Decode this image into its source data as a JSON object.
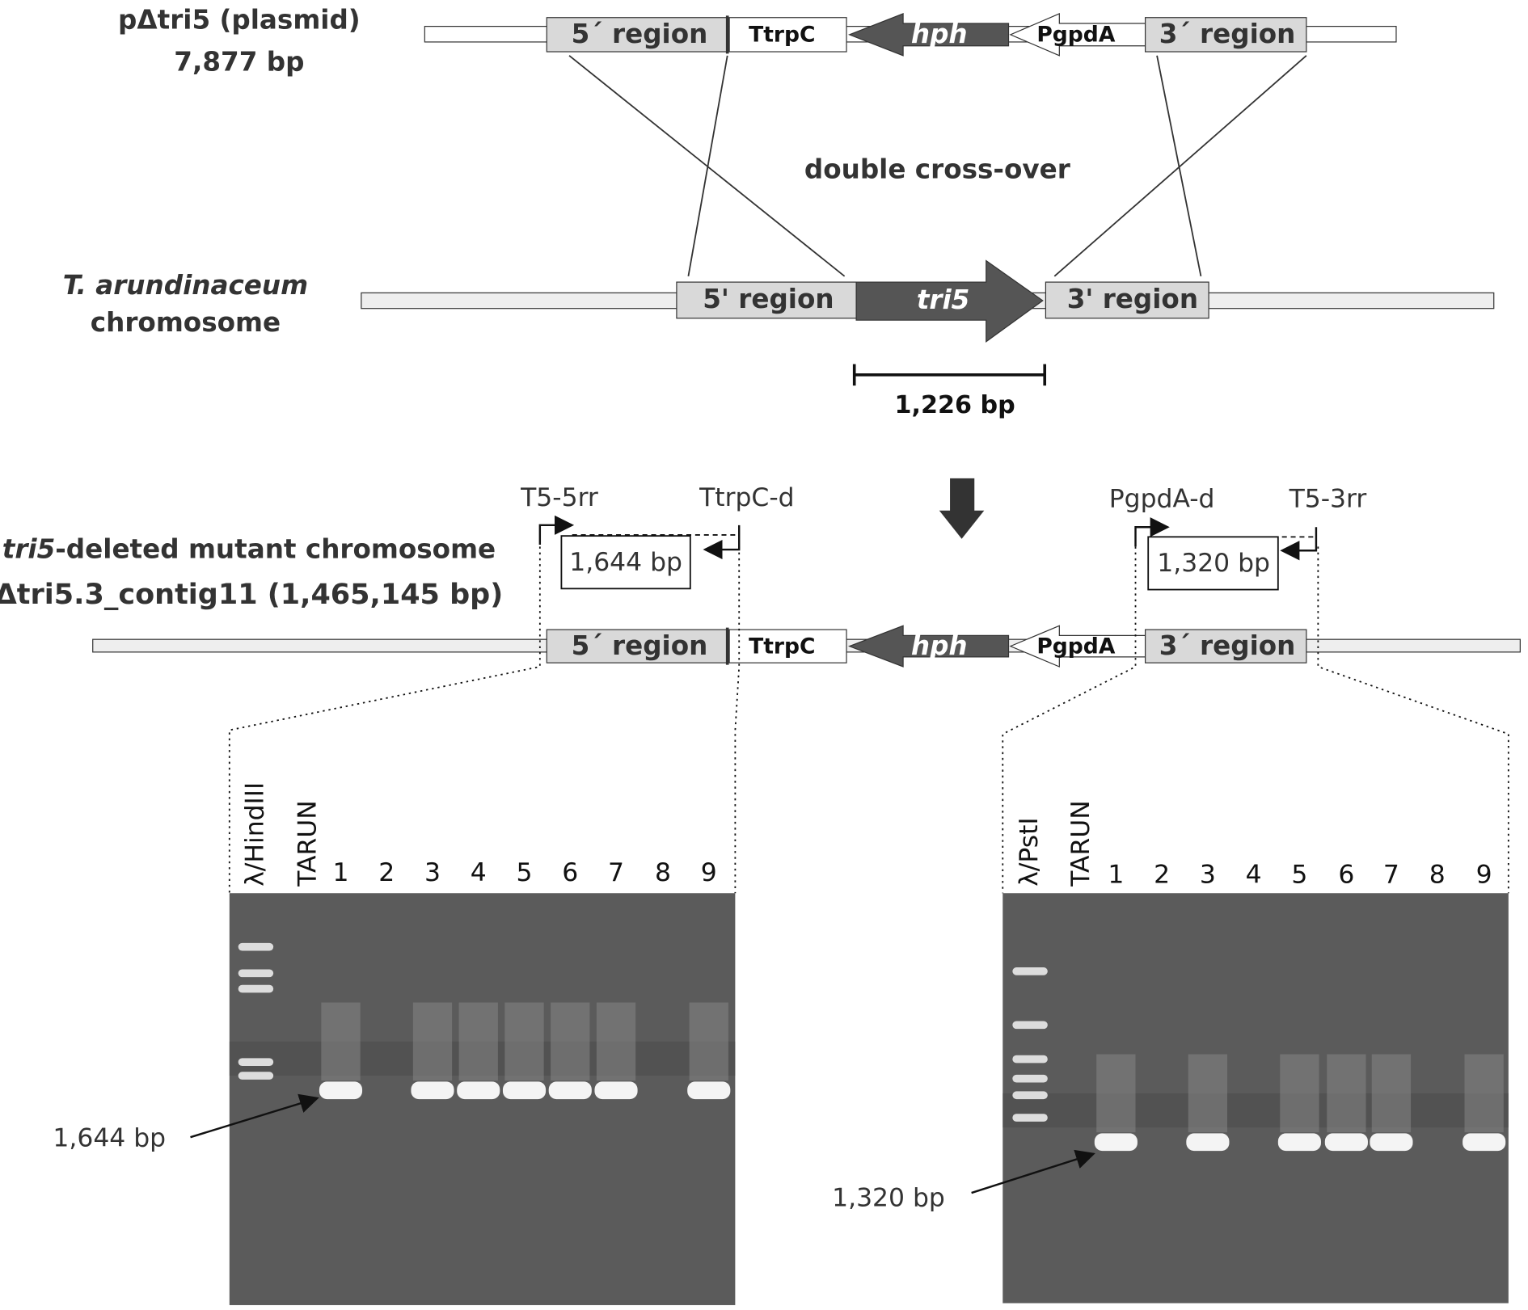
{
  "plasmid": {
    "name": "pΔtri5 (plasmid)",
    "size": "7,877 bp",
    "elements": [
      "5´ region",
      "TtrpC",
      "hph",
      "PgpdA",
      "3´ region"
    ]
  },
  "crossover": "double cross-over",
  "wild_type": {
    "species": "T. arundinaceum",
    "label": "chromosome",
    "elements": [
      "5' region",
      "tri5",
      "3' region"
    ],
    "deletion_size": "1,226 bp"
  },
  "mutant": {
    "label_gene": "tri5",
    "label": "-deleted mutant chromosome",
    "contig": "Δtri5.3_contig11 (1,465,145 bp)",
    "elements": [
      "5´ region",
      "TtrpC",
      "hph",
      "PgpdA",
      "3´ region"
    ]
  },
  "primers": [
    "T5-5rr",
    "TtrpC-d",
    "PgpdA-d",
    "T5-3rr"
  ],
  "amplicons": [
    "1,644 bp",
    "1,320 bp"
  ],
  "gels": [
    {
      "lanes": [
        "λ/HindIII",
        "TARUN",
        "1",
        "2",
        "3",
        "4",
        "5",
        "6",
        "7",
        "8",
        "9"
      ],
      "band_label": "1,644 bp"
    },
    {
      "lanes": [
        "λ/PstI",
        "TARUN",
        "1",
        "2",
        "3",
        "4",
        "5",
        "6",
        "7",
        "8",
        "9"
      ],
      "band_label": "1,320 bp"
    }
  ]
}
